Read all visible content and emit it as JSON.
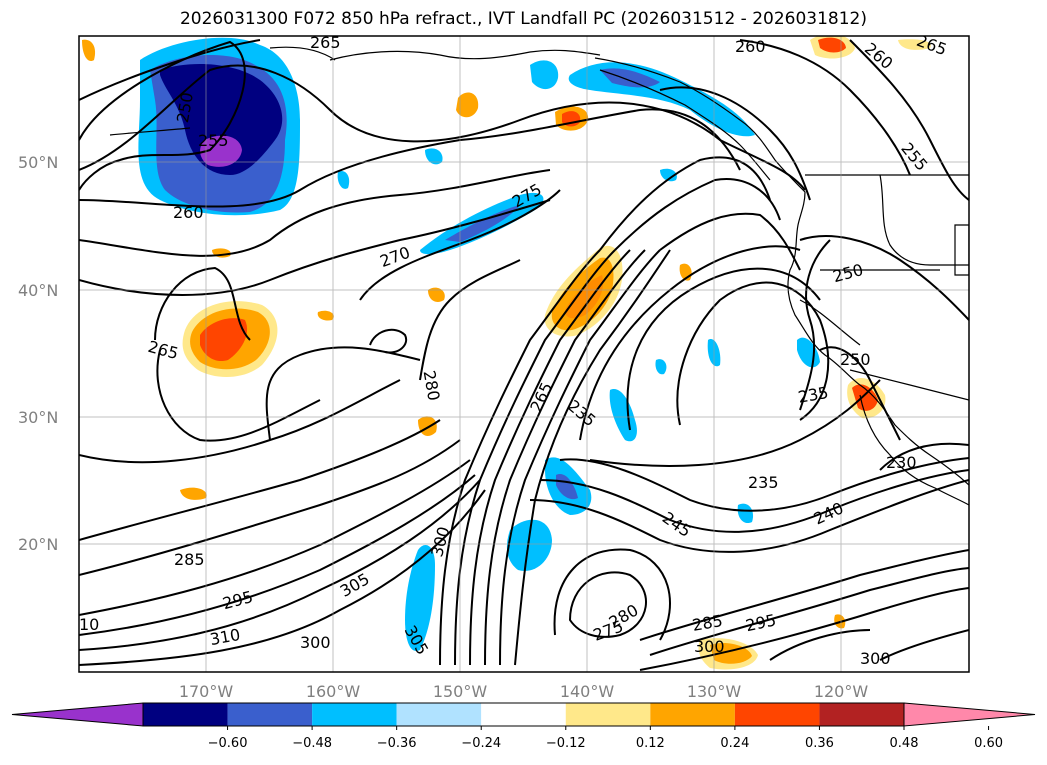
{
  "title": "2026031300 F072 850 hPa refract., IVT Landfall PC (2026031512 - 2026031812)",
  "lat_labels": [
    "50°N",
    "40°N",
    "30°N",
    "20°N"
  ],
  "lon_labels": [
    "170°W",
    "160°W",
    "150°W",
    "140°W",
    "130°W",
    "120°W"
  ],
  "colorbar": {
    "ticks": [
      "−0.60",
      "−0.48",
      "−0.36",
      "−0.24",
      "−0.12",
      "0.12",
      "0.24",
      "0.36",
      "0.48",
      "0.60"
    ],
    "colors": [
      "#9932CC",
      "#000080",
      "#3A5FCD",
      "#00BFFF",
      "#B0E2FF",
      "#FFFFFF",
      "#FFE88A",
      "#FFA500",
      "#FF4500",
      "#B22222",
      "#FF88AA"
    ]
  },
  "contour_labels": [
    "265",
    "260",
    "250",
    "255",
    "260",
    "265",
    "260",
    "255",
    "275",
    "270",
    "250",
    "265",
    "280",
    "265",
    "235",
    "235",
    "250",
    "235",
    "230",
    "240",
    "245",
    "285",
    "295",
    "310",
    "305",
    "300",
    "305",
    "300",
    "280",
    "275",
    "285",
    "295",
    "300",
    "300",
    "10"
  ],
  "chart_data": {
    "type": "map",
    "fields": [
      "850 hPa refractivity (contours)",
      "IVT Landfall PC (shaded)"
    ],
    "init": "2026031300",
    "forecast_hour": "F072",
    "valid_window": "2026031512 - 2026031812",
    "contour_values": [
      230,
      235,
      240,
      245,
      250,
      255,
      260,
      265,
      270,
      275,
      280,
      285,
      295,
      300,
      305,
      310
    ],
    "shading_levels": [
      -0.6,
      -0.48,
      -0.36,
      -0.24,
      -0.12,
      0.12,
      0.24,
      0.36,
      0.48,
      0.6
    ],
    "lat_ticks": [
      50,
      40,
      30,
      20
    ],
    "lon_ticks": [
      -170,
      -160,
      -150,
      -140,
      -130,
      -120
    ]
  }
}
